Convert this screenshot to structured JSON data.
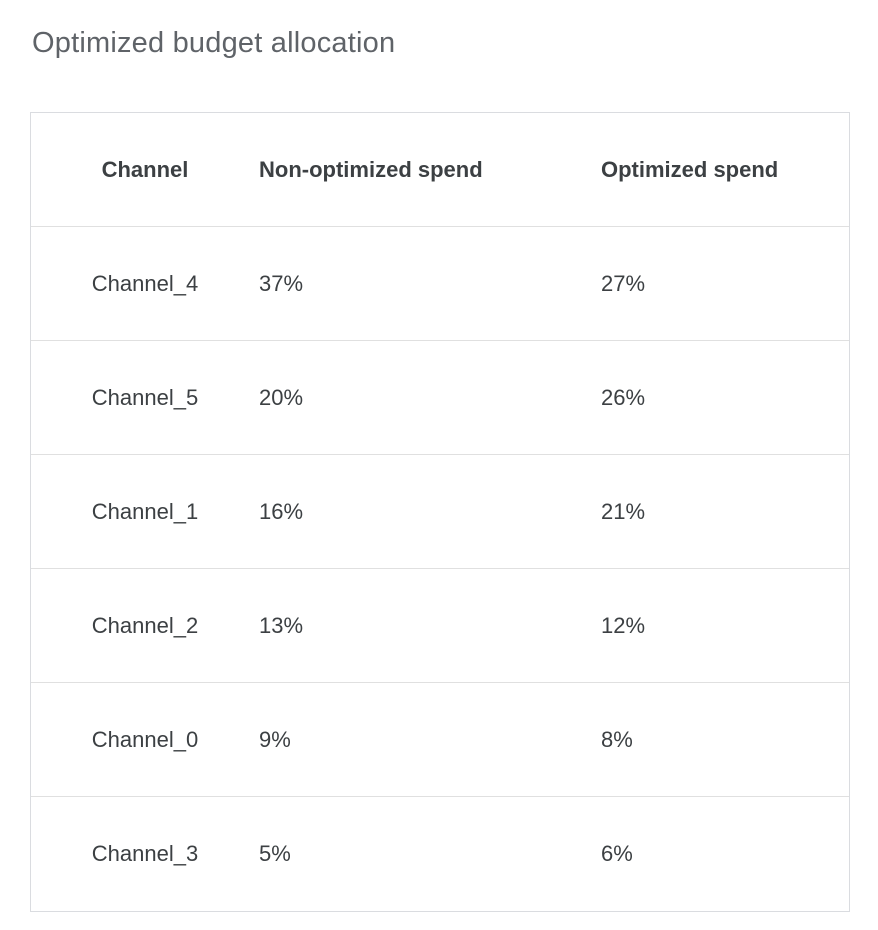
{
  "page": {
    "title": "Optimized budget allocation"
  },
  "colors": {
    "title_text": "#5f6368",
    "cell_text": "#3c4043",
    "table_border": "#dadce0",
    "row_divider": "#e0e0e0",
    "background": "#ffffff"
  },
  "chart_data": {
    "type": "table",
    "title": "Optimized budget allocation",
    "columns": [
      "Channel",
      "Non-optimized spend",
      "Optimized spend"
    ],
    "rows": [
      [
        "Channel_4",
        "37%",
        "27%"
      ],
      [
        "Channel_5",
        "20%",
        "26%"
      ],
      [
        "Channel_1",
        "16%",
        "21%"
      ],
      [
        "Channel_2",
        "13%",
        "12%"
      ],
      [
        "Channel_0",
        "9%",
        "8%"
      ],
      [
        "Channel_3",
        "5%",
        "6%"
      ]
    ]
  }
}
